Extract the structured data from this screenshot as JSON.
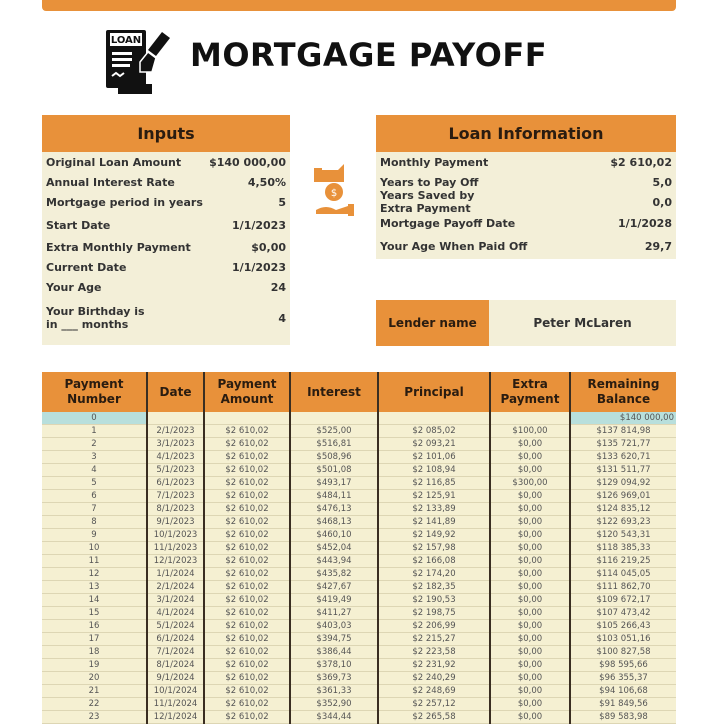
{
  "title": "MORTGAGE PAYOFF",
  "logo": {
    "text": "LOAN",
    "icon": "loan-document-pen-icon"
  },
  "colors": {
    "accent": "#e8913a",
    "panel": "#f3efd8",
    "highlight": "#b8dfdc"
  },
  "inputs": {
    "heading": "Inputs",
    "rows": [
      {
        "label": "Original Loan Amount",
        "value": "$140 000,00"
      },
      {
        "label": "Annual Interest Rate",
        "value": "4,50%"
      },
      {
        "label": "Mortgage period in years",
        "value": "5"
      },
      {
        "label": "Start Date",
        "value": "1/1/2023"
      },
      {
        "label": "Extra Monthly Payment",
        "value": "$0,00"
      },
      {
        "label": "Current Date",
        "value": "1/1/2023"
      },
      {
        "label": "Your Age",
        "value": "24"
      },
      {
        "label": "Your Birthday is in ___ months",
        "value": "4"
      }
    ]
  },
  "loan_info": {
    "heading": "Loan Information",
    "rows": [
      {
        "label": "Monthly Payment",
        "value": "$2 610,02"
      },
      {
        "label": "Years to Pay Off",
        "value": "5,0"
      },
      {
        "label": "Years Saved by Extra Payment",
        "value": "0,0"
      },
      {
        "label": "Mortgage Payoff Date",
        "value": "1/1/2028"
      },
      {
        "label": "Your Age When Paid Off",
        "value": "29,7"
      }
    ]
  },
  "lender": {
    "label": "Lender name",
    "value": "Peter McLaren"
  },
  "schedule": {
    "columns": [
      "Payment Number",
      "Date",
      "Payment Amount",
      "Interest",
      "Principal",
      "Extra Payment",
      "Remaining Balance"
    ],
    "rows": [
      [
        "0",
        "",
        "",
        "",
        "",
        "",
        "$140 000,00"
      ],
      [
        "1",
        "2/1/2023",
        "$2 610,02",
        "$525,00",
        "$2 085,02",
        "$100,00",
        "$137 814,98"
      ],
      [
        "2",
        "3/1/2023",
        "$2 610,02",
        "$516,81",
        "$2 093,21",
        "$0,00",
        "$135 721,77"
      ],
      [
        "3",
        "4/1/2023",
        "$2 610,02",
        "$508,96",
        "$2 101,06",
        "$0,00",
        "$133 620,71"
      ],
      [
        "4",
        "5/1/2023",
        "$2 610,02",
        "$501,08",
        "$2 108,94",
        "$0,00",
        "$131 511,77"
      ],
      [
        "5",
        "6/1/2023",
        "$2 610,02",
        "$493,17",
        "$2 116,85",
        "$300,00",
        "$129 094,92"
      ],
      [
        "6",
        "7/1/2023",
        "$2 610,02",
        "$484,11",
        "$2 125,91",
        "$0,00",
        "$126 969,01"
      ],
      [
        "7",
        "8/1/2023",
        "$2 610,02",
        "$476,13",
        "$2 133,89",
        "$0,00",
        "$124 835,12"
      ],
      [
        "8",
        "9/1/2023",
        "$2 610,02",
        "$468,13",
        "$2 141,89",
        "$0,00",
        "$122 693,23"
      ],
      [
        "9",
        "10/1/2023",
        "$2 610,02",
        "$460,10",
        "$2 149,92",
        "$0,00",
        "$120 543,31"
      ],
      [
        "10",
        "11/1/2023",
        "$2 610,02",
        "$452,04",
        "$2 157,98",
        "$0,00",
        "$118 385,33"
      ],
      [
        "11",
        "12/1/2023",
        "$2 610,02",
        "$443,94",
        "$2 166,08",
        "$0,00",
        "$116 219,25"
      ],
      [
        "12",
        "1/1/2024",
        "$2 610,02",
        "$435,82",
        "$2 174,20",
        "$0,00",
        "$114 045,05"
      ],
      [
        "13",
        "2/1/2024",
        "$2 610,02",
        "$427,67",
        "$2 182,35",
        "$0,00",
        "$111 862,70"
      ],
      [
        "14",
        "3/1/2024",
        "$2 610,02",
        "$419,49",
        "$2 190,53",
        "$0,00",
        "$109 672,17"
      ],
      [
        "15",
        "4/1/2024",
        "$2 610,02",
        "$411,27",
        "$2 198,75",
        "$0,00",
        "$107 473,42"
      ],
      [
        "16",
        "5/1/2024",
        "$2 610,02",
        "$403,03",
        "$2 206,99",
        "$0,00",
        "$105 266,43"
      ],
      [
        "17",
        "6/1/2024",
        "$2 610,02",
        "$394,75",
        "$2 215,27",
        "$0,00",
        "$103 051,16"
      ],
      [
        "18",
        "7/1/2024",
        "$2 610,02",
        "$386,44",
        "$2 223,58",
        "$0,00",
        "$100 827,58"
      ],
      [
        "19",
        "8/1/2024",
        "$2 610,02",
        "$378,10",
        "$2 231,92",
        "$0,00",
        "$98 595,66"
      ],
      [
        "20",
        "9/1/2024",
        "$2 610,02",
        "$369,73",
        "$2 240,29",
        "$0,00",
        "$96 355,37"
      ],
      [
        "21",
        "10/1/2024",
        "$2 610,02",
        "$361,33",
        "$2 248,69",
        "$0,00",
        "$94 106,68"
      ],
      [
        "22",
        "11/1/2024",
        "$2 610,02",
        "$352,90",
        "$2 257,12",
        "$0,00",
        "$91 849,56"
      ],
      [
        "23",
        "12/1/2024",
        "$2 610,02",
        "$344,44",
        "$2 265,58",
        "$0,00",
        "$89 583,98"
      ]
    ]
  }
}
